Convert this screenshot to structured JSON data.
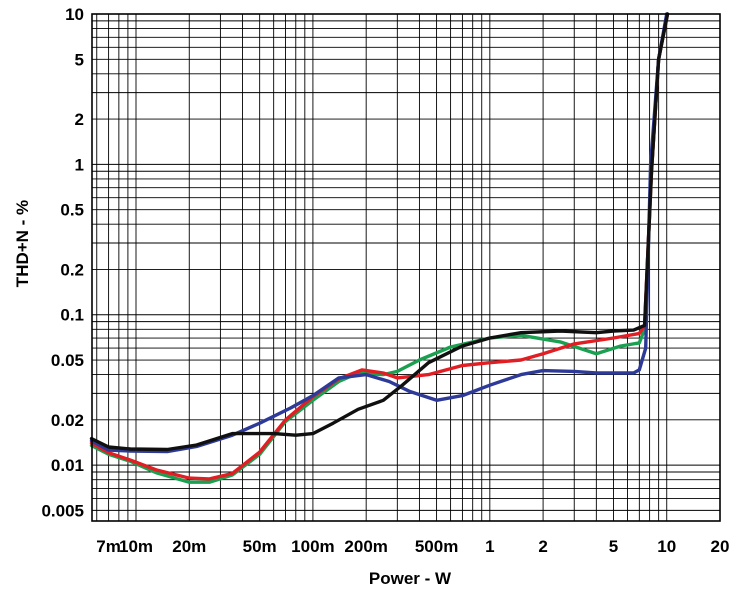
{
  "chart_data": {
    "type": "line",
    "title": "",
    "xlabel": "Power - W",
    "ylabel": "THD+N - %",
    "x_scale": "log",
    "y_scale": "log",
    "xlim": [
      0.00564,
      20
    ],
    "ylim": [
      0.00425,
      10
    ],
    "grid": true,
    "legend": "none",
    "x_ticks": [
      {
        "value": 0.007,
        "label": "7m"
      },
      {
        "value": 0.01,
        "label": "10m"
      },
      {
        "value": 0.02,
        "label": "20m"
      },
      {
        "value": 0.05,
        "label": "50m"
      },
      {
        "value": 0.1,
        "label": "100m"
      },
      {
        "value": 0.2,
        "label": "200m"
      },
      {
        "value": 0.5,
        "label": "500m"
      },
      {
        "value": 1,
        "label": "1"
      },
      {
        "value": 2,
        "label": "2"
      },
      {
        "value": 5,
        "label": "5"
      },
      {
        "value": 10,
        "label": "10"
      },
      {
        "value": 20,
        "label": "20"
      }
    ],
    "y_ticks": [
      {
        "value": 0.005,
        "label": "0.005"
      },
      {
        "value": 0.01,
        "label": "0.01"
      },
      {
        "value": 0.02,
        "label": "0.02"
      },
      {
        "value": 0.05,
        "label": "0.05"
      },
      {
        "value": 0.1,
        "label": "0.1"
      },
      {
        "value": 0.2,
        "label": "0.2"
      },
      {
        "value": 0.5,
        "label": "0.5"
      },
      {
        "value": 1,
        "label": "1"
      },
      {
        "value": 2,
        "label": "2"
      },
      {
        "value": 5,
        "label": "5"
      },
      {
        "value": 10,
        "label": "10"
      }
    ],
    "series": [
      {
        "color": "#1aa050",
        "points": [
          [
            0.0056,
            0.0135
          ],
          [
            0.007,
            0.0118
          ],
          [
            0.0093,
            0.0106
          ],
          [
            0.013,
            0.0089
          ],
          [
            0.02,
            0.0077
          ],
          [
            0.026,
            0.0077
          ],
          [
            0.035,
            0.0086
          ],
          [
            0.05,
            0.0118
          ],
          [
            0.07,
            0.0195
          ],
          [
            0.1,
            0.027
          ],
          [
            0.14,
            0.036
          ],
          [
            0.18,
            0.041
          ],
          [
            0.25,
            0.04
          ],
          [
            0.3,
            0.042
          ],
          [
            0.4,
            0.05
          ],
          [
            0.6,
            0.061
          ],
          [
            1,
            0.07
          ],
          [
            1.5,
            0.073
          ],
          [
            2.5,
            0.066
          ],
          [
            4,
            0.055
          ],
          [
            5.5,
            0.062
          ],
          [
            7,
            0.065
          ],
          [
            7.5,
            0.08
          ],
          [
            8.2,
            0.9
          ],
          [
            9,
            5
          ],
          [
            10.1,
            10
          ]
        ]
      },
      {
        "color": "#e01e24",
        "points": [
          [
            0.0056,
            0.014
          ],
          [
            0.007,
            0.0121
          ],
          [
            0.0093,
            0.0108
          ],
          [
            0.013,
            0.0093
          ],
          [
            0.02,
            0.0082
          ],
          [
            0.026,
            0.0081
          ],
          [
            0.035,
            0.0088
          ],
          [
            0.05,
            0.0122
          ],
          [
            0.07,
            0.02
          ],
          [
            0.1,
            0.0285
          ],
          [
            0.14,
            0.0375
          ],
          [
            0.19,
            0.043
          ],
          [
            0.25,
            0.041
          ],
          [
            0.3,
            0.038
          ],
          [
            0.45,
            0.04
          ],
          [
            0.7,
            0.046
          ],
          [
            1,
            0.048
          ],
          [
            1.5,
            0.05
          ],
          [
            2,
            0.055
          ],
          [
            3,
            0.064
          ],
          [
            5,
            0.07
          ],
          [
            7,
            0.075
          ],
          [
            7.5,
            0.085
          ],
          [
            8.2,
            0.9
          ],
          [
            9,
            5
          ],
          [
            10.1,
            10
          ]
        ]
      },
      {
        "color": "#2e3a97",
        "points": [
          [
            0.0056,
            0.0145
          ],
          [
            0.007,
            0.0126
          ],
          [
            0.0093,
            0.0124
          ],
          [
            0.015,
            0.0123
          ],
          [
            0.022,
            0.0133
          ],
          [
            0.035,
            0.0158
          ],
          [
            0.05,
            0.019
          ],
          [
            0.075,
            0.024
          ],
          [
            0.1,
            0.029
          ],
          [
            0.14,
            0.038
          ],
          [
            0.2,
            0.04
          ],
          [
            0.27,
            0.036
          ],
          [
            0.35,
            0.031
          ],
          [
            0.5,
            0.027
          ],
          [
            0.7,
            0.029
          ],
          [
            1,
            0.034
          ],
          [
            1.5,
            0.04
          ],
          [
            2,
            0.0425
          ],
          [
            3,
            0.042
          ],
          [
            4,
            0.041
          ],
          [
            5.5,
            0.041
          ],
          [
            6.5,
            0.041
          ],
          [
            7,
            0.043
          ],
          [
            7.6,
            0.06
          ],
          [
            8.1,
            1
          ],
          [
            9,
            5
          ],
          [
            10,
            10
          ]
        ]
      },
      {
        "color": "#101010",
        "points": [
          [
            0.0056,
            0.015
          ],
          [
            0.007,
            0.0132
          ],
          [
            0.0093,
            0.0128
          ],
          [
            0.015,
            0.0127
          ],
          [
            0.022,
            0.0136
          ],
          [
            0.035,
            0.0162
          ],
          [
            0.06,
            0.0162
          ],
          [
            0.08,
            0.0158
          ],
          [
            0.1,
            0.0162
          ],
          [
            0.13,
            0.019
          ],
          [
            0.18,
            0.0235
          ],
          [
            0.25,
            0.027
          ],
          [
            0.32,
            0.034
          ],
          [
            0.45,
            0.048
          ],
          [
            0.7,
            0.062
          ],
          [
            1,
            0.07
          ],
          [
            1.5,
            0.076
          ],
          [
            2.5,
            0.078
          ],
          [
            4,
            0.076
          ],
          [
            5,
            0.078
          ],
          [
            6.5,
            0.079
          ],
          [
            7.5,
            0.085
          ],
          [
            8.2,
            0.9
          ],
          [
            9,
            5
          ],
          [
            10.1,
            10
          ]
        ]
      }
    ]
  }
}
